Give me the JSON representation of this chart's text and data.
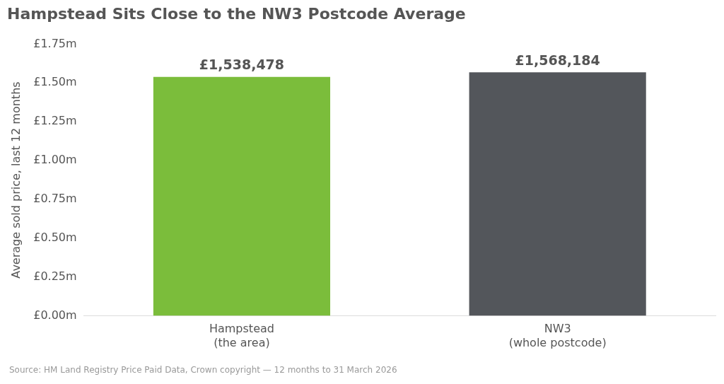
{
  "chart_data": {
    "type": "bar",
    "title": "Hampstead Sits Close to the NW3 Postcode Average",
    "ylabel": "Average sold price, last 12 months",
    "categories": [
      "Hampstead\n(the area)",
      "NW3\n(whole postcode)"
    ],
    "values": [
      1538478,
      1568184
    ],
    "colors": [
      "#7bbd3b",
      "#53565b"
    ],
    "value_labels": [
      "£1,538,478",
      "£1,568,184"
    ],
    "ylim": [
      0,
      1750000
    ],
    "yticks": [
      {
        "value": 0,
        "label": "£0.00m"
      },
      {
        "value": 250000,
        "label": "£0.25m"
      },
      {
        "value": 500000,
        "label": "£0.50m"
      },
      {
        "value": 750000,
        "label": "£0.75m"
      },
      {
        "value": 1000000,
        "label": "£1.00m"
      },
      {
        "value": 1250000,
        "label": "£1.25m"
      },
      {
        "value": 1500000,
        "label": "£1.50m"
      },
      {
        "value": 1750000,
        "label": "£1.75m"
      }
    ],
    "grid": false,
    "legend": false,
    "annotations": [
      "Source: HM Land Registry Price Paid Data, Crown copyright — 12 months to 31 March 2026"
    ]
  }
}
